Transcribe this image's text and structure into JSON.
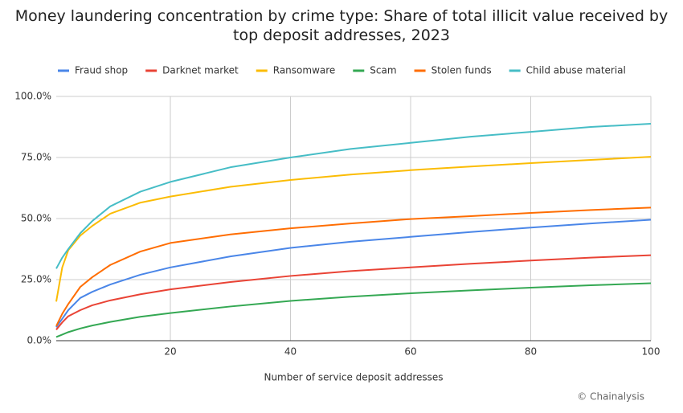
{
  "chart_data": {
    "type": "line",
    "title": "Money laundering concentration by crime type: Share of total illicit value received by top deposit addresses, 2023",
    "x_label": "Number of service deposit addresses",
    "source": "© Chainalysis",
    "x": [
      1,
      2,
      3,
      5,
      7,
      10,
      15,
      20,
      30,
      40,
      50,
      60,
      70,
      80,
      90,
      100
    ],
    "series": [
      {
        "name": "Fraud shop",
        "color": "#4a86e8",
        "values": [
          5.5,
          9,
          12.5,
          17.5,
          20,
          23,
          27,
          30,
          34.5,
          38,
          40.5,
          42.5,
          44.5,
          46.3,
          48,
          49.5
        ]
      },
      {
        "name": "Darknet market",
        "color": "#e94335",
        "values": [
          4.5,
          7.5,
          10,
          12.5,
          14.5,
          16.5,
          19,
          21,
          24,
          26.5,
          28.5,
          30,
          31.5,
          32.8,
          34,
          35
        ]
      },
      {
        "name": "Ransomware",
        "color": "#fbbc04",
        "values": [
          16,
          30,
          37,
          43,
          47,
          52,
          56.5,
          59,
          63,
          65.8,
          68,
          69.8,
          71.3,
          72.7,
          74,
          75.3
        ]
      },
      {
        "name": "Scam",
        "color": "#34a853",
        "values": [
          1.5,
          2.5,
          3.5,
          5,
          6.2,
          7.7,
          9.8,
          11.3,
          14,
          16.3,
          18,
          19.4,
          20.6,
          21.7,
          22.7,
          23.5
        ]
      },
      {
        "name": "Stolen funds",
        "color": "#ff6d01",
        "values": [
          6,
          11,
          15,
          22,
          26,
          31,
          36.5,
          40,
          43.5,
          46,
          48,
          49.8,
          51,
          52.3,
          53.5,
          54.5
        ]
      },
      {
        "name": "Child abuse material",
        "color": "#46bdc6",
        "values": [
          29.5,
          34,
          37.5,
          44,
          49,
          55,
          61,
          65,
          71,
          75,
          78.5,
          81,
          83.5,
          85.5,
          87.5,
          88.8
        ]
      }
    ],
    "xlim": [
      1,
      100
    ],
    "xticks": [
      20,
      40,
      60,
      80,
      100
    ],
    "ylim": [
      0,
      100
    ],
    "yticks": [
      {
        "value": 0,
        "label": "0.0%"
      },
      {
        "value": 25,
        "label": "25.0%"
      },
      {
        "value": 50,
        "label": "50.0%"
      },
      {
        "value": 75,
        "label": "75.0%"
      },
      {
        "value": 100,
        "label": "100.0%"
      }
    ],
    "grid": true,
    "legend": "top"
  }
}
